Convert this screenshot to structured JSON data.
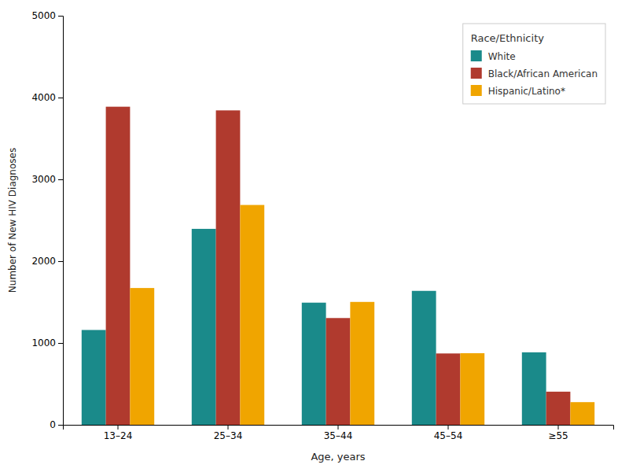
{
  "chart_data": {
    "type": "bar",
    "xlabel": "Age, years",
    "ylabel": "Number of New HIV Diagnoses",
    "legend_title": "Race/Ethnicity",
    "categories": [
      "13–24",
      "25–34",
      "35–44",
      "45–54",
      "≥55"
    ],
    "series": [
      {
        "name": "White",
        "color": "#1a8a8a",
        "values": [
          1159,
          2395,
          1493,
          1637,
          886
        ]
      },
      {
        "name": "Black/African American",
        "color": "#b03a2e",
        "values": [
          3888,
          3843,
          1305,
          872,
          405
        ]
      },
      {
        "name": "Hispanic/Latino*",
        "color": "#f0a500",
        "values": [
          1672,
          2687,
          1502,
          875,
          277
        ]
      }
    ],
    "ylim": [
      0,
      5000
    ],
    "yticks": [
      0,
      1000,
      2000,
      3000,
      4000,
      5000
    ],
    "grid": false,
    "legend": "upper right"
  }
}
